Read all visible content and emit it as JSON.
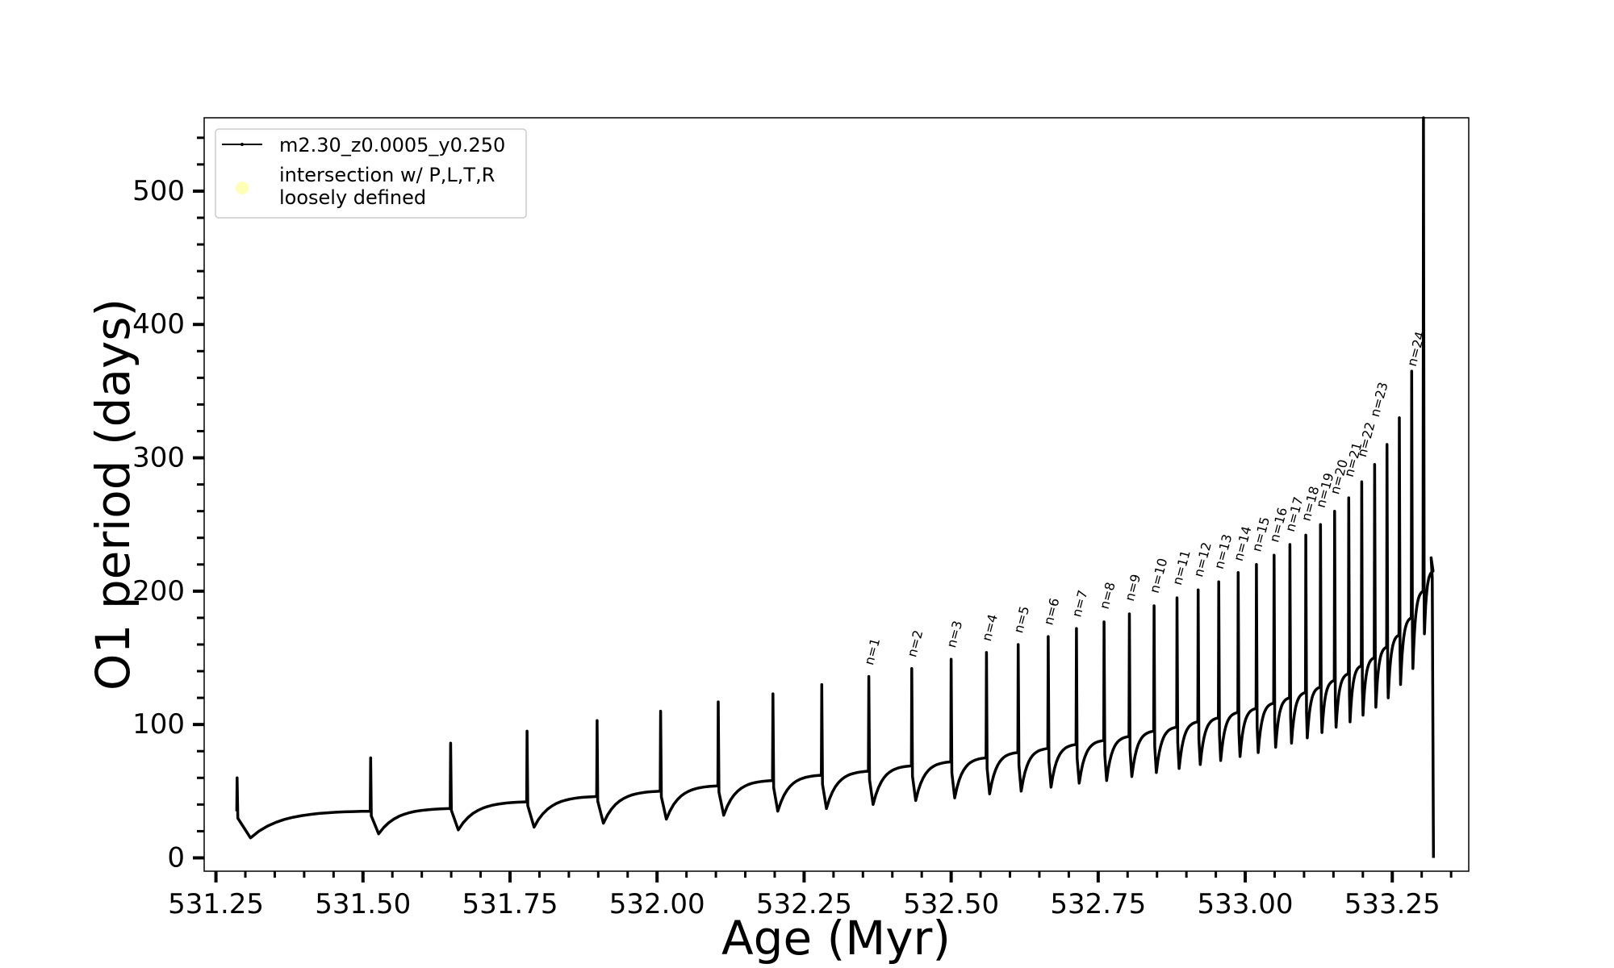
{
  "chart_data": {
    "type": "line",
    "title": "",
    "xlabel": "Age (Myr)",
    "ylabel": "O1 period (days)",
    "xlim": [
      531.23,
      533.38
    ],
    "ylim": [
      -10,
      555
    ],
    "xticks": [
      531.25,
      531.5,
      531.75,
      532.0,
      532.25,
      532.5,
      532.75,
      533.0,
      533.25
    ],
    "xtick_labels": [
      "531.25",
      "531.50",
      "531.75",
      "532.00",
      "532.25",
      "532.50",
      "532.75",
      "533.00",
      "533.25"
    ],
    "yticks": [
      0,
      100,
      200,
      300,
      400,
      500
    ],
    "ytick_labels": [
      "0",
      "100",
      "200",
      "300",
      "400",
      "500"
    ],
    "grid": false,
    "legend_position": "top-left",
    "series": [
      {
        "name": "m2.30_z0.0005_y0.250",
        "color": "#000000",
        "style": "line-with-small-markers",
        "pulses": [
          {
            "age": 531.286,
            "base": 35,
            "peak": 60,
            "min": 15
          },
          {
            "age": 531.513,
            "base": 37,
            "peak": 75,
            "min": 18
          },
          {
            "age": 531.649,
            "base": 42,
            "peak": 86,
            "min": 21
          },
          {
            "age": 531.779,
            "base": 46,
            "peak": 95,
            "min": 23
          },
          {
            "age": 531.898,
            "base": 50,
            "peak": 103,
            "min": 26
          },
          {
            "age": 532.006,
            "base": 54,
            "peak": 110,
            "min": 29
          },
          {
            "age": 532.104,
            "base": 58,
            "peak": 117,
            "min": 32
          },
          {
            "age": 532.197,
            "base": 62,
            "peak": 123,
            "min": 35
          },
          {
            "age": 532.28,
            "base": 65,
            "peak": 130,
            "min": 37
          },
          {
            "age": 532.36,
            "base": 69,
            "peak": 136,
            "min": 40
          },
          {
            "age": 532.433,
            "base": 72,
            "peak": 142,
            "min": 43
          },
          {
            "age": 532.5,
            "base": 75,
            "peak": 149,
            "min": 45
          },
          {
            "age": 532.56,
            "base": 79,
            "peak": 154,
            "min": 48
          },
          {
            "age": 532.614,
            "base": 82,
            "peak": 160,
            "min": 50
          },
          {
            "age": 532.665,
            "base": 85,
            "peak": 166,
            "min": 53
          },
          {
            "age": 532.713,
            "base": 88,
            "peak": 172,
            "min": 56
          },
          {
            "age": 532.76,
            "base": 91,
            "peak": 177,
            "min": 58
          },
          {
            "age": 532.803,
            "base": 95,
            "peak": 183,
            "min": 61
          },
          {
            "age": 532.845,
            "base": 98,
            "peak": 189,
            "min": 64
          },
          {
            "age": 532.884,
            "base": 102,
            "peak": 195,
            "min": 67
          },
          {
            "age": 532.92,
            "base": 105,
            "peak": 201,
            "min": 70
          },
          {
            "age": 532.955,
            "base": 109,
            "peak": 207,
            "min": 73
          },
          {
            "age": 532.988,
            "base": 112,
            "peak": 214,
            "min": 76
          },
          {
            "age": 533.019,
            "base": 116,
            "peak": 220,
            "min": 79
          },
          {
            "age": 533.049,
            "base": 120,
            "peak": 227,
            "min": 83
          },
          {
            "age": 533.076,
            "base": 124,
            "peak": 235,
            "min": 86
          },
          {
            "age": 533.103,
            "base": 128,
            "peak": 242,
            "min": 90
          },
          {
            "age": 533.128,
            "base": 133,
            "peak": 250,
            "min": 94
          },
          {
            "age": 533.152,
            "base": 138,
            "peak": 260,
            "min": 98
          },
          {
            "age": 533.176,
            "base": 144,
            "peak": 270,
            "min": 102
          },
          {
            "age": 533.198,
            "base": 150,
            "peak": 282,
            "min": 107
          },
          {
            "age": 533.22,
            "base": 158,
            "peak": 295,
            "min": 113
          },
          {
            "age": 533.241,
            "base": 167,
            "peak": 310,
            "min": 120
          },
          {
            "age": 533.262,
            "base": 180,
            "peak": 330,
            "min": 130
          },
          {
            "age": 533.283,
            "base": 200,
            "peak": 365,
            "min": 142
          },
          {
            "age": 533.303,
            "base": 215,
            "peak": 555,
            "min": 168
          }
        ],
        "final_drop": {
          "age": 533.32,
          "peak": 225,
          "min": 0
        }
      },
      {
        "name": "intersection w/ P,L,T,R\nloosely defined",
        "color": "#ffff99",
        "style": "marker-only",
        "points": []
      }
    ],
    "annotations": [
      {
        "text": "n=1",
        "x": 532.36,
        "y": 144
      },
      {
        "text": "n=2",
        "x": 532.433,
        "y": 150
      },
      {
        "text": "n=3",
        "x": 532.5,
        "y": 157
      },
      {
        "text": "n=4",
        "x": 532.56,
        "y": 162
      },
      {
        "text": "n=5",
        "x": 532.614,
        "y": 168
      },
      {
        "text": "n=6",
        "x": 532.665,
        "y": 174
      },
      {
        "text": "n=7",
        "x": 532.713,
        "y": 180
      },
      {
        "text": "n=8",
        "x": 532.76,
        "y": 186
      },
      {
        "text": "n=9",
        "x": 532.803,
        "y": 192
      },
      {
        "text": "n=10",
        "x": 532.845,
        "y": 198
      },
      {
        "text": "n=11",
        "x": 532.884,
        "y": 204
      },
      {
        "text": "n=12",
        "x": 532.92,
        "y": 210
      },
      {
        "text": "n=13",
        "x": 532.955,
        "y": 216
      },
      {
        "text": "n=14",
        "x": 532.988,
        "y": 222
      },
      {
        "text": "n=15",
        "x": 533.019,
        "y": 229
      },
      {
        "text": "n=16",
        "x": 533.049,
        "y": 236
      },
      {
        "text": "n=17",
        "x": 533.076,
        "y": 244
      },
      {
        "text": "n=18",
        "x": 533.103,
        "y": 252
      },
      {
        "text": "n=19",
        "x": 533.128,
        "y": 262
      },
      {
        "text": "n=20",
        "x": 533.152,
        "y": 272
      },
      {
        "text": "n=21",
        "x": 533.176,
        "y": 285
      },
      {
        "text": "n=22",
        "x": 533.198,
        "y": 300
      },
      {
        "text": "n=23",
        "x": 533.22,
        "y": 330
      },
      {
        "text": "n=24",
        "x": 533.283,
        "y": 368
      }
    ]
  }
}
